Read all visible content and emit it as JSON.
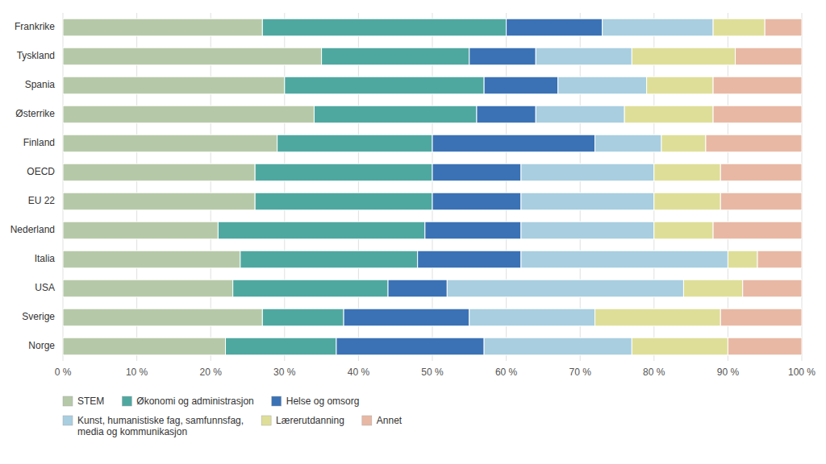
{
  "chart_data": {
    "type": "bar",
    "orientation": "horizontal",
    "stacked": true,
    "categories": [
      "Frankrike",
      "Tyskland",
      "Spania",
      "Østerrike",
      "Finland",
      "OECD",
      "EU 22",
      "Nederland",
      "Italia",
      "USA",
      "Sverige",
      "Norge"
    ],
    "series": [
      {
        "name": "STEM",
        "color": "#b5c9a8",
        "values": [
          27,
          35,
          30,
          34,
          29,
          26,
          26,
          21,
          24,
          23,
          27,
          22
        ]
      },
      {
        "name": "Økonomi og administrasjon",
        "color": "#4fa8a0",
        "values": [
          33,
          20,
          27,
          22,
          21,
          24,
          24,
          28,
          24,
          21,
          11,
          15
        ]
      },
      {
        "name": "Helse og omsorg",
        "color": "#3a72b5",
        "values": [
          13,
          9,
          10,
          8,
          22,
          12,
          12,
          13,
          14,
          8,
          17,
          20
        ]
      },
      {
        "name": "Kunst, humanistiske fag, samfunnsfag,\nmedia og kommunikasjon",
        "color": "#a8cee0",
        "values": [
          15,
          13,
          12,
          12,
          9,
          18,
          18,
          18,
          28,
          32,
          17,
          20
        ]
      },
      {
        "name": "Lærerutdanning",
        "color": "#dede98",
        "values": [
          7,
          14,
          9,
          12,
          6,
          9,
          9,
          8,
          4,
          8,
          17,
          13
        ]
      },
      {
        "name": "Annet",
        "color": "#e8b8a4",
        "values": [
          5,
          9,
          12,
          12,
          13,
          11,
          11,
          12,
          6,
          8,
          11,
          10
        ]
      }
    ],
    "xlim": [
      0,
      100
    ],
    "xticks": [
      {
        "value": 0,
        "label": "0 %"
      },
      {
        "value": 10,
        "label": "10 %"
      },
      {
        "value": 20,
        "label": "20 %"
      },
      {
        "value": 30,
        "label": "30 %"
      },
      {
        "value": 40,
        "label": "40 %"
      },
      {
        "value": 50,
        "label": "50 %"
      },
      {
        "value": 60,
        "label": "60 %"
      },
      {
        "value": 70,
        "label": "70 %"
      },
      {
        "value": 80,
        "label": "80 %"
      },
      {
        "value": 90,
        "label": "90 %"
      },
      {
        "value": 100,
        "label": "100 %"
      }
    ],
    "grid": true,
    "legend": "bottom"
  }
}
